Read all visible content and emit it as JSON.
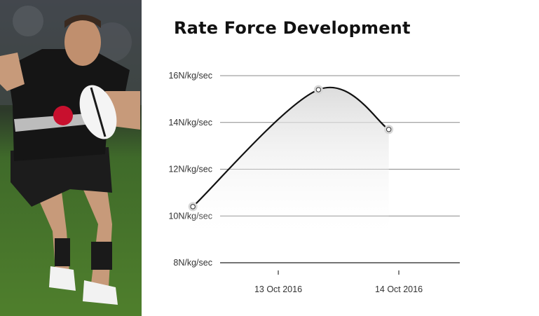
{
  "chart_data": {
    "type": "line",
    "title": "Rate Force Development",
    "xlabel": "",
    "ylabel": "",
    "y_unit": "N/kg/sec",
    "y_ticks": [
      "8N/kg/sec",
      "10N/kg/sec",
      "12N/kg/sec",
      "14N/kg/sec",
      "16N/kg/sec"
    ],
    "x_ticks": [
      "13 Oct 2016",
      "14 Oct 2016"
    ],
    "ylim": [
      8,
      16
    ],
    "grid": true,
    "legend": "none",
    "series": [
      {
        "x": [
          "12 Oct 2016 19:00",
          "13 Oct 2016 20:00",
          "14 Oct 2016 10:00"
        ],
        "values": [
          10.4,
          15.4,
          13.7
        ]
      }
    ],
    "colors": {
      "line": "#111111",
      "grid": "#8a8a8a",
      "marker_fill": "#ffffff",
      "marker_halo": "#d8d8d8"
    }
  },
  "photo": {
    "description_icon": "rugby-player-photo"
  }
}
